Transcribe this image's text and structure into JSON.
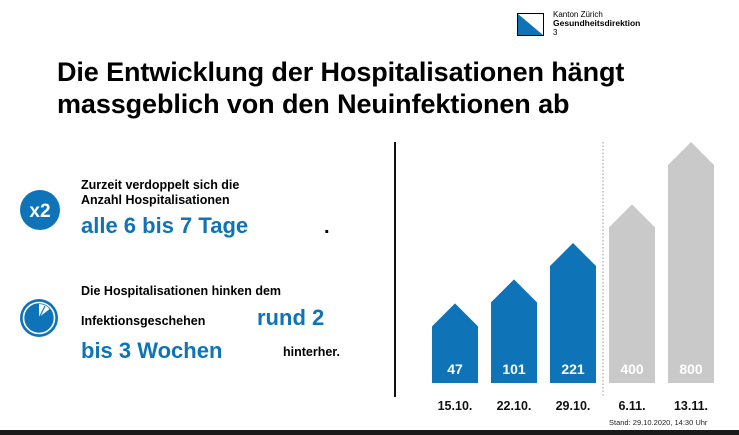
{
  "header": {
    "canton": "Kanton Zürich",
    "department": "Gesundheitsdirektion",
    "page_number": "3",
    "logo_color": "#0f73b8"
  },
  "title": {
    "line1": "Die Entwicklung der Hospitalisationen hängt",
    "line2": "massgeblich von den Neuinfektionen ab"
  },
  "stat_doubling": {
    "badge": "x2",
    "line1": "Zurzeit verdoppelt sich die",
    "line2": "Anzahl Hospitalisationen",
    "highlight": "alle 6 bis 7 Tage",
    "end": "."
  },
  "stat_lag": {
    "icon": "clock-pie-icon",
    "line1": "Die Hospitalisationen hinken dem",
    "line2_text": "Infektionsgeschehen",
    "highlight1": "rund 2",
    "highlight2": "bis 3 Wochen",
    "tail": "hinterher."
  },
  "footer": {
    "stand": "Stand: 29.10.2020, 14:30 Uhr"
  },
  "colors": {
    "accent_blue": "#0f73b8",
    "forecast_gray": "#c9c9c9"
  },
  "chart_data": {
    "type": "bar",
    "categories": [
      "15.10.",
      "22.10.",
      "29.10.",
      "6.11.",
      "13.11."
    ],
    "values": [
      47,
      101,
      221,
      400,
      800
    ],
    "labels": [
      "47",
      "101",
      "221",
      "400",
      "800"
    ],
    "kinds": [
      "actual",
      "actual",
      "actual",
      "forecast",
      "forecast"
    ],
    "ylim": [
      0,
      800
    ],
    "title": "",
    "xlabel": "",
    "ylabel": ""
  }
}
